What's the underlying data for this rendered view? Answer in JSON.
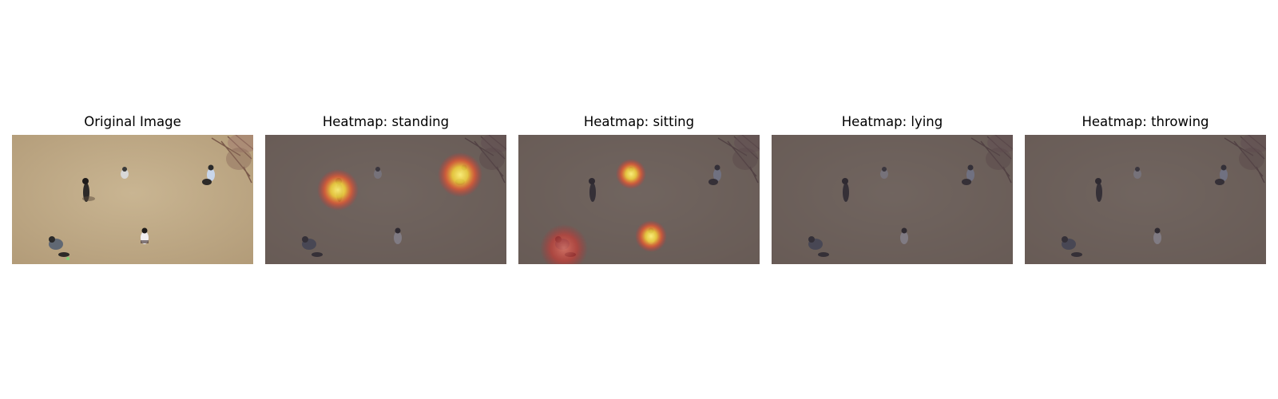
{
  "panels": [
    {
      "title": "Original Image",
      "dim": false,
      "glows": []
    },
    {
      "title": "Heatmap: standing",
      "dim": true,
      "glows": [
        "person-2",
        "person-4"
      ]
    },
    {
      "title": "Heatmap: sitting",
      "dim": true,
      "glows": [
        "person-1",
        "person-3"
      ]
    },
    {
      "title": "Heatmap: lying",
      "dim": true,
      "glows": []
    },
    {
      "title": "Heatmap: throwing",
      "dim": true,
      "glows": []
    }
  ],
  "colors": {
    "ground": "#c2ad8a",
    "dim_overlay": "#3a3340",
    "glow_core": "#fff27a",
    "glow_mid": "#ff5a2a",
    "glow_outer": "#e3262a"
  }
}
